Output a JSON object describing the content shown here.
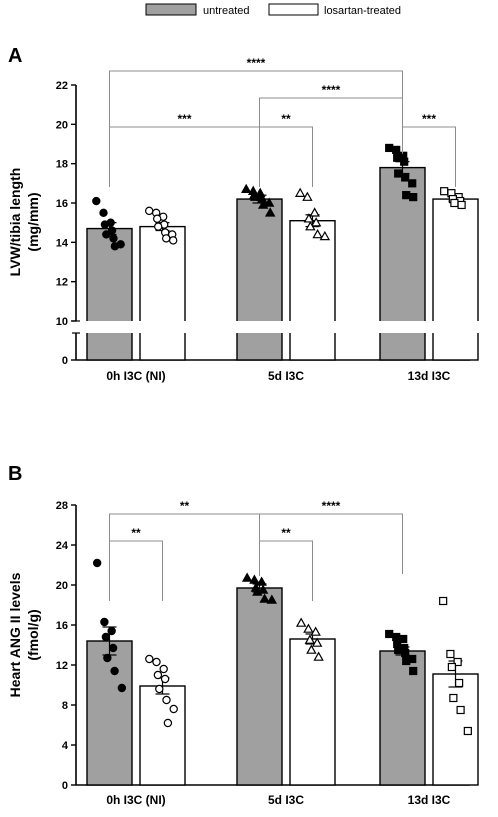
{
  "legend": {
    "untreated": "untreated",
    "losartan": "losartan-treated"
  },
  "colors": {
    "untreated_fill": "#a0a0a0",
    "treated_fill": "#ffffff",
    "stroke": "#000000",
    "bracket": "#8c8c8c"
  },
  "chart_data": [
    {
      "type": "bar",
      "panel": "A",
      "ylabel_lines": [
        "LVW/tibia length",
        "(mg/mm)"
      ],
      "categories": [
        "0h I3C (NI)",
        "5d I3C",
        "13d I3C"
      ],
      "ylim": [
        0,
        22
      ],
      "axis_break": [
        0,
        10
      ],
      "yticks": [
        0,
        10,
        12,
        14,
        16,
        18,
        20,
        22
      ],
      "series": [
        {
          "name": "untreated",
          "values": [
            14.7,
            16.2,
            17.8
          ],
          "sem": [
            0.3,
            0.2,
            0.3
          ],
          "points": [
            [
              16.1,
              15.5,
              15.0,
              14.9,
              14.6,
              14.4,
              14.2,
              13.9,
              13.8
            ],
            [
              16.7,
              16.6,
              16.5,
              16.4,
              16.3,
              16.3,
              16.2,
              16.0,
              15.9,
              15.5
            ],
            [
              18.8,
              18.7,
              18.4,
              18.3,
              18.1,
              17.5,
              17.3,
              17.0,
              16.4,
              16.3
            ]
          ]
        },
        {
          "name": "losartan-treated",
          "values": [
            14.8,
            15.1,
            16.2
          ],
          "sem": [
            0.2,
            0.3,
            0.1
          ],
          "points": [
            [
              15.6,
              15.5,
              15.3,
              15.2,
              14.9,
              14.8,
              14.5,
              14.4,
              14.2,
              14.1
            ],
            [
              16.5,
              16.3,
              15.5,
              15.2,
              15.0,
              14.8,
              14.4,
              14.3
            ],
            [
              16.6,
              16.5,
              16.3,
              16.2,
              16.1,
              16.0,
              15.9
            ]
          ]
        }
      ],
      "significance": [
        {
          "label": "****",
          "from": [
            0,
            0
          ],
          "to": [
            2,
            0
          ]
        },
        {
          "label": "****",
          "from": [
            1,
            0
          ],
          "to": [
            2,
            0
          ]
        },
        {
          "label": "***",
          "from": [
            0,
            0
          ],
          "to": [
            1,
            0
          ]
        },
        {
          "label": "**",
          "from": [
            1,
            0
          ],
          "to": [
            1,
            1
          ]
        },
        {
          "label": "***",
          "from": [
            2,
            0
          ],
          "to": [
            2,
            1
          ]
        }
      ]
    },
    {
      "type": "bar",
      "panel": "B",
      "ylabel_lines": [
        "Heart ANG II levels",
        "(fmol/g)"
      ],
      "categories": [
        "0h I3C (NI)",
        "5d I3C",
        "13d I3C"
      ],
      "ylim": [
        0,
        28
      ],
      "yticks": [
        0,
        4,
        8,
        12,
        16,
        20,
        24,
        28
      ],
      "series": [
        {
          "name": "untreated",
          "values": [
            14.4,
            19.7,
            13.4
          ],
          "sem": [
            1.4,
            0.4,
            0.4
          ],
          "points": [
            [
              22.2,
              16.3,
              15.4,
              14.8,
              13.7,
              12.7,
              11.4,
              9.7
            ],
            [
              20.7,
              20.5,
              20.3,
              19.7,
              19.5,
              19.3,
              18.6,
              18.5
            ],
            [
              15.1,
              14.8,
              14.6,
              14.1,
              13.7,
              13.5,
              13.2,
              12.6,
              12.4,
              11.4
            ]
          ]
        },
        {
          "name": "losartan-treated",
          "values": [
            9.9,
            14.6,
            11.1
          ],
          "sem": [
            0.8,
            0.5,
            1.3
          ],
          "points": [
            [
              12.6,
              12.3,
              11.6,
              11.0,
              10.6,
              9.6,
              8.5,
              7.6,
              6.2
            ],
            [
              16.2,
              15.6,
              15.3,
              14.5,
              14.2,
              13.5,
              12.8
            ],
            [
              18.4,
              13.1,
              12.3,
              11.8,
              10.2,
              8.7,
              7.5,
              5.4
            ]
          ]
        }
      ],
      "significance": [
        {
          "label": "**",
          "from": [
            0,
            0
          ],
          "to": [
            1,
            0
          ]
        },
        {
          "label": "****",
          "from": [
            1,
            0
          ],
          "to": [
            2,
            0
          ]
        },
        {
          "label": "**",
          "from": [
            0,
            0
          ],
          "to": [
            0,
            1
          ]
        },
        {
          "label": "**",
          "from": [
            1,
            0
          ],
          "to": [
            1,
            1
          ]
        }
      ]
    }
  ]
}
